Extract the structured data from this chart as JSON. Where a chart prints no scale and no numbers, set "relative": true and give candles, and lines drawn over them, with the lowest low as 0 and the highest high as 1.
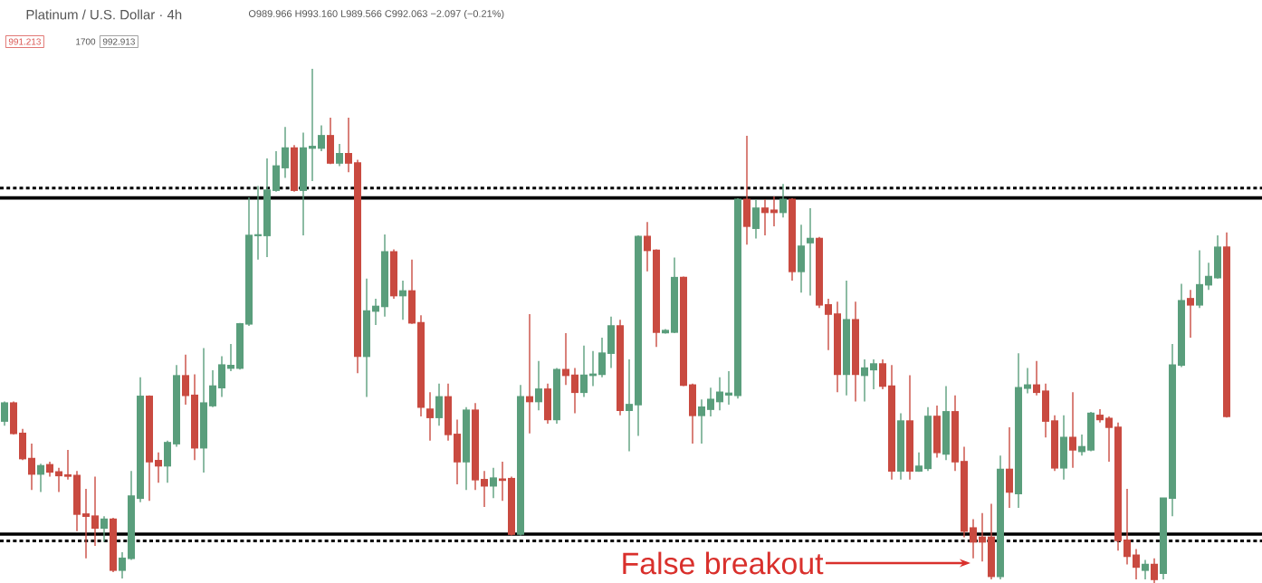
{
  "chart_data": {
    "type": "candlestick",
    "relative": true,
    "title": "Platinum / U.S. Dollar · 4h",
    "subtitle": "O989.966 H993.160 L989.566 C992.063 −2.097 (−0.21%)",
    "annotations": [
      "991.213",
      "1700",
      "992.913",
      "False breakout"
    ],
    "categories": [
      null,
      null,
      null,
      null,
      null,
      null,
      null,
      null,
      null,
      null,
      null,
      null,
      null,
      null,
      null,
      null,
      null,
      null,
      null,
      null,
      null,
      null,
      null,
      null,
      null,
      null,
      null,
      null,
      null,
      null,
      null,
      null,
      null,
      null,
      null,
      null,
      null,
      null,
      null,
      null,
      null,
      null,
      null,
      null,
      null,
      null,
      null,
      null,
      null,
      null,
      null,
      null,
      null,
      null,
      null,
      null,
      null,
      null,
      null,
      null,
      null,
      null,
      null,
      null,
      null,
      null,
      null,
      null,
      null,
      null,
      null,
      null,
      null,
      null,
      null,
      null,
      null,
      null,
      null,
      null,
      null,
      null,
      null,
      null,
      null,
      null,
      null,
      null,
      null,
      null,
      null,
      null,
      null,
      null,
      null,
      null,
      null,
      null,
      null,
      null,
      null,
      null,
      null,
      null,
      null,
      null,
      null,
      null,
      null,
      null,
      null,
      null,
      null,
      null,
      null,
      null,
      null,
      null,
      null,
      null,
      null,
      null,
      null,
      null,
      null,
      null,
      null,
      null,
      null,
      null,
      null,
      null,
      null,
      null,
      null,
      null
    ],
    "ohlc": [
      [
        0.315,
        0.353,
        0.306,
        0.35
      ],
      [
        0.35,
        0.353,
        0.289,
        0.291
      ],
      [
        0.291,
        0.3,
        0.239,
        0.242
      ],
      [
        0.242,
        0.271,
        0.181,
        0.212
      ],
      [
        0.212,
        0.232,
        0.177,
        0.228
      ],
      [
        0.23,
        0.236,
        0.207,
        0.216
      ],
      [
        0.216,
        0.224,
        0.177,
        0.209
      ],
      [
        0.21,
        0.259,
        0.201,
        0.208
      ],
      [
        0.209,
        0.218,
        0.101,
        0.134
      ],
      [
        0.134,
        0.183,
        0.048,
        0.13
      ],
      [
        0.13,
        0.207,
        0.072,
        0.107
      ],
      [
        0.107,
        0.13,
        0.08,
        0.124
      ],
      [
        0.124,
        0.127,
        0.021,
        0.025
      ],
      [
        0.025,
        0.06,
        0.009,
        0.048
      ],
      [
        0.048,
        0.218,
        0.045,
        0.169
      ],
      [
        0.165,
        0.4,
        0.157,
        0.363
      ],
      [
        0.363,
        0.365,
        0.16,
        0.236
      ],
      [
        0.238,
        0.254,
        0.195,
        0.228
      ],
      [
        0.228,
        0.277,
        0.195,
        0.273
      ],
      [
        0.271,
        0.424,
        0.265,
        0.403
      ],
      [
        0.403,
        0.444,
        0.347,
        0.365
      ],
      [
        0.365,
        0.406,
        0.239,
        0.263
      ],
      [
        0.263,
        0.457,
        0.215,
        0.35
      ],
      [
        0.345,
        0.414,
        0.342,
        0.383
      ],
      [
        0.38,
        0.441,
        0.362,
        0.424
      ],
      [
        0.418,
        0.465,
        0.412,
        0.423
      ],
      [
        0.418,
        0.506,
        0.415,
        0.504
      ],
      [
        0.504,
        0.75,
        0.5,
        0.676
      ],
      [
        0.676,
        0.772,
        0.629,
        0.677
      ],
      [
        0.676,
        0.826,
        0.634,
        0.764
      ],
      [
        0.764,
        0.84,
        0.761,
        0.811
      ],
      [
        0.808,
        0.887,
        0.788,
        0.846
      ],
      [
        0.846,
        0.852,
        0.761,
        0.764
      ],
      [
        0.764,
        0.876,
        0.676,
        0.846
      ],
      [
        0.846,
        1.0,
        0.782,
        0.849
      ],
      [
        0.846,
        0.89,
        0.84,
        0.87
      ],
      [
        0.87,
        0.905,
        0.815,
        0.817
      ],
      [
        0.817,
        0.854,
        0.811,
        0.835
      ],
      [
        0.835,
        0.905,
        0.799,
        0.817
      ],
      [
        0.817,
        0.823,
        0.408,
        0.441
      ],
      [
        0.441,
        0.592,
        0.362,
        0.529
      ],
      [
        0.529,
        0.553,
        0.502,
        0.538
      ],
      [
        0.538,
        0.678,
        0.518,
        0.644
      ],
      [
        0.644,
        0.649,
        0.553,
        0.559
      ],
      [
        0.559,
        0.588,
        0.512,
        0.568
      ],
      [
        0.568,
        0.629,
        0.504,
        0.506
      ],
      [
        0.506,
        0.521,
        0.324,
        0.342
      ],
      [
        0.338,
        0.371,
        0.277,
        0.322
      ],
      [
        0.322,
        0.388,
        0.306,
        0.362
      ],
      [
        0.362,
        0.388,
        0.277,
        0.289
      ],
      [
        0.289,
        0.318,
        0.192,
        0.236
      ],
      [
        0.236,
        0.342,
        0.181,
        0.336
      ],
      [
        0.336,
        0.35,
        0.181,
        0.201
      ],
      [
        0.201,
        0.218,
        0.148,
        0.189
      ],
      [
        0.189,
        0.224,
        0.165,
        0.204
      ],
      [
        0.202,
        0.236,
        0.16,
        0.2
      ],
      [
        0.203,
        0.207,
        0.092,
        0.095
      ],
      [
        0.095,
        0.385,
        0.092,
        0.362
      ],
      [
        0.362,
        0.523,
        0.291,
        0.353
      ],
      [
        0.353,
        0.432,
        0.336,
        0.377
      ],
      [
        0.377,
        0.388,
        0.31,
        0.318
      ],
      [
        0.318,
        0.418,
        0.31,
        0.415
      ],
      [
        0.415,
        0.486,
        0.385,
        0.404
      ],
      [
        0.404,
        0.418,
        0.33,
        0.371
      ],
      [
        0.371,
        0.462,
        0.362,
        0.404
      ],
      [
        0.404,
        0.451,
        0.383,
        0.406
      ],
      [
        0.406,
        0.477,
        0.4,
        0.447
      ],
      [
        0.447,
        0.518,
        0.418,
        0.5
      ],
      [
        0.5,
        0.512,
        0.326,
        0.336
      ],
      [
        0.336,
        0.435,
        0.256,
        0.347
      ],
      [
        0.347,
        0.676,
        0.286,
        0.674
      ],
      [
        0.674,
        0.702,
        0.606,
        0.647
      ],
      [
        0.647,
        0.649,
        0.459,
        0.488
      ],
      [
        0.487,
        0.494,
        0.485,
        0.491
      ],
      [
        0.488,
        0.633,
        0.486,
        0.594
      ],
      [
        0.594,
        0.596,
        0.383,
        0.385
      ],
      [
        0.385,
        0.388,
        0.271,
        0.326
      ],
      [
        0.326,
        0.357,
        0.271,
        0.342
      ],
      [
        0.338,
        0.38,
        0.324,
        0.357
      ],
      [
        0.353,
        0.4,
        0.336,
        0.371
      ],
      [
        0.366,
        0.412,
        0.347,
        0.369
      ],
      [
        0.365,
        0.749,
        0.359,
        0.746
      ],
      [
        0.746,
        0.87,
        0.658,
        0.694
      ],
      [
        0.69,
        0.746,
        0.67,
        0.729
      ],
      [
        0.729,
        0.746,
        0.676,
        0.721
      ],
      [
        0.725,
        0.752,
        0.694,
        0.721
      ],
      [
        0.721,
        0.776,
        0.711,
        0.746
      ],
      [
        0.746,
        0.749,
        0.588,
        0.606
      ],
      [
        0.606,
        0.697,
        0.565,
        0.655
      ],
      [
        0.662,
        0.729,
        0.559,
        0.67
      ],
      [
        0.67,
        0.673,
        0.535,
        0.541
      ],
      [
        0.541,
        0.553,
        0.453,
        0.523
      ],
      [
        0.523,
        0.547,
        0.371,
        0.406
      ],
      [
        0.406,
        0.588,
        0.365,
        0.512
      ],
      [
        0.512,
        0.547,
        0.353,
        0.406
      ],
      [
        0.404,
        0.435,
        0.353,
        0.418
      ],
      [
        0.415,
        0.435,
        0.377,
        0.426
      ],
      [
        0.426,
        0.435,
        0.377,
        0.383
      ],
      [
        0.383,
        0.424,
        0.201,
        0.218
      ],
      [
        0.218,
        0.33,
        0.201,
        0.315
      ],
      [
        0.315,
        0.404,
        0.201,
        0.218
      ],
      [
        0.218,
        0.254,
        0.216,
        0.227
      ],
      [
        0.223,
        0.342,
        0.218,
        0.324
      ],
      [
        0.324,
        0.345,
        0.244,
        0.254
      ],
      [
        0.251,
        0.383,
        0.239,
        0.333
      ],
      [
        0.333,
        0.365,
        0.218,
        0.236
      ],
      [
        0.236,
        0.265,
        0.089,
        0.101
      ],
      [
        0.107,
        0.124,
        0.048,
        0.08
      ],
      [
        0.089,
        0.136,
        0.042,
        0.08
      ],
      [
        0.089,
        0.154,
        0.007,
        0.013
      ],
      [
        0.013,
        0.248,
        0.007,
        0.221
      ],
      [
        0.221,
        0.303,
        0.146,
        0.177
      ],
      [
        0.174,
        0.447,
        0.146,
        0.38
      ],
      [
        0.379,
        0.418,
        0.369,
        0.385
      ],
      [
        0.385,
        0.432,
        0.365,
        0.371
      ],
      [
        0.373,
        0.388,
        0.283,
        0.315
      ],
      [
        0.315,
        0.326,
        0.218,
        0.224
      ],
      [
        0.224,
        0.326,
        0.201,
        0.283
      ],
      [
        0.283,
        0.371,
        0.224,
        0.259
      ],
      [
        0.256,
        0.289,
        0.248,
        0.265
      ],
      [
        0.259,
        0.333,
        0.256,
        0.33
      ],
      [
        0.326,
        0.338,
        0.312,
        0.318
      ],
      [
        0.32,
        0.324,
        0.236,
        0.303
      ],
      [
        0.303,
        0.312,
        0.063,
        0.083
      ],
      [
        0.083,
        0.183,
        0.036,
        0.052
      ],
      [
        0.054,
        0.066,
        0.007,
        0.031
      ],
      [
        0.025,
        0.045,
        0.007,
        0.036
      ],
      [
        0.036,
        0.048,
        0.0,
        0.007
      ],
      [
        0.019,
        0.165,
        0.007,
        0.165
      ],
      [
        0.165,
        0.465,
        0.13,
        0.424
      ],
      [
        0.424,
        0.582,
        0.42,
        0.549
      ],
      [
        0.553,
        0.57,
        0.477,
        0.541
      ],
      [
        0.541,
        0.647,
        0.535,
        0.58
      ],
      [
        0.58,
        0.623,
        0.57,
        0.596
      ],
      [
        0.594,
        0.676,
        0.592,
        0.653
      ],
      [
        0.653,
        0.682,
        0.322,
        0.324
      ]
    ],
    "colors": [
      "#5a9e7c",
      "#c94a40",
      "#c94a40",
      "#c94a40",
      "#5a9e7c",
      "#c94a40",
      "#c94a40",
      "#c94a40",
      "#c94a40",
      "#c94a40",
      "#c94a40",
      "#5a9e7c",
      "#c94a40",
      "#5a9e7c",
      "#5a9e7c",
      "#5a9e7c",
      "#c94a40",
      "#c94a40",
      "#5a9e7c",
      "#5a9e7c",
      "#c94a40",
      "#c94a40",
      "#5a9e7c",
      "#5a9e7c",
      "#5a9e7c",
      "#5a9e7c",
      "#5a9e7c",
      "#5a9e7c",
      "#5a9e7c",
      "#5a9e7c",
      "#5a9e7c",
      "#5a9e7c",
      "#c94a40",
      "#5a9e7c",
      "#5a9e7c",
      "#5a9e7c",
      "#c94a40",
      "#5a9e7c",
      "#c94a40",
      "#c94a40",
      "#5a9e7c",
      "#5a9e7c",
      "#5a9e7c",
      "#c94a40",
      "#5a9e7c",
      "#c94a40",
      "#c94a40",
      "#c94a40",
      "#5a9e7c",
      "#c94a40",
      "#c94a40",
      "#5a9e7c",
      "#c94a40",
      "#c94a40",
      "#5a9e7c",
      "#c94a40",
      "#c94a40",
      "#5a9e7c",
      "#c94a40",
      "#5a9e7c",
      "#c94a40",
      "#5a9e7c",
      "#c94a40",
      "#c94a40",
      "#5a9e7c",
      "#5a9e7c",
      "#5a9e7c",
      "#5a9e7c",
      "#c94a40",
      "#5a9e7c",
      "#5a9e7c",
      "#c94a40",
      "#c94a40",
      "#5a9e7c",
      "#5a9e7c",
      "#c94a40",
      "#c94a40",
      "#5a9e7c",
      "#5a9e7c",
      "#5a9e7c",
      "#5a9e7c",
      "#5a9e7c",
      "#c94a40",
      "#5a9e7c",
      "#c94a40",
      "#c94a40",
      "#5a9e7c",
      "#c94a40",
      "#5a9e7c",
      "#5a9e7c",
      "#c94a40",
      "#c94a40",
      "#c94a40",
      "#5a9e7c",
      "#c94a40",
      "#5a9e7c",
      "#5a9e7c",
      "#c94a40",
      "#c94a40",
      "#5a9e7c",
      "#c94a40",
      "#5a9e7c",
      "#5a9e7c",
      "#c94a40",
      "#5a9e7c",
      "#c94a40",
      "#c94a40",
      "#c94a40",
      "#c94a40",
      "#c94a40",
      "#5a9e7c",
      "#c94a40",
      "#5a9e7c",
      "#5a9e7c",
      "#c94a40",
      "#c94a40",
      "#c94a40",
      "#5a9e7c",
      "#c94a40",
      "#5a9e7c",
      "#5a9e7c",
      "#c94a40",
      "#c94a40",
      "#c94a40",
      "#c94a40",
      "#c94a40",
      "#5a9e7c",
      "#c94a40",
      "#5a9e7c",
      "#5a9e7c",
      "#5a9e7c",
      "#c94a40",
      "#5a9e7c",
      "#5a9e7c",
      "#5a9e7c",
      "#c94a40"
    ],
    "ref_lines": [
      {
        "axis": "y",
        "value": 0.768,
        "color": "#000000",
        "line_style": "dotted"
      },
      {
        "axis": "y",
        "value": 0.749,
        "color": "#000000",
        "line_style": "solid"
      },
      {
        "axis": "y",
        "value": 0.095,
        "color": "#000000",
        "line_style": "solid"
      },
      {
        "axis": "y",
        "value": 0.082,
        "color": "#000000",
        "line_style": "dotted"
      }
    ]
  }
}
